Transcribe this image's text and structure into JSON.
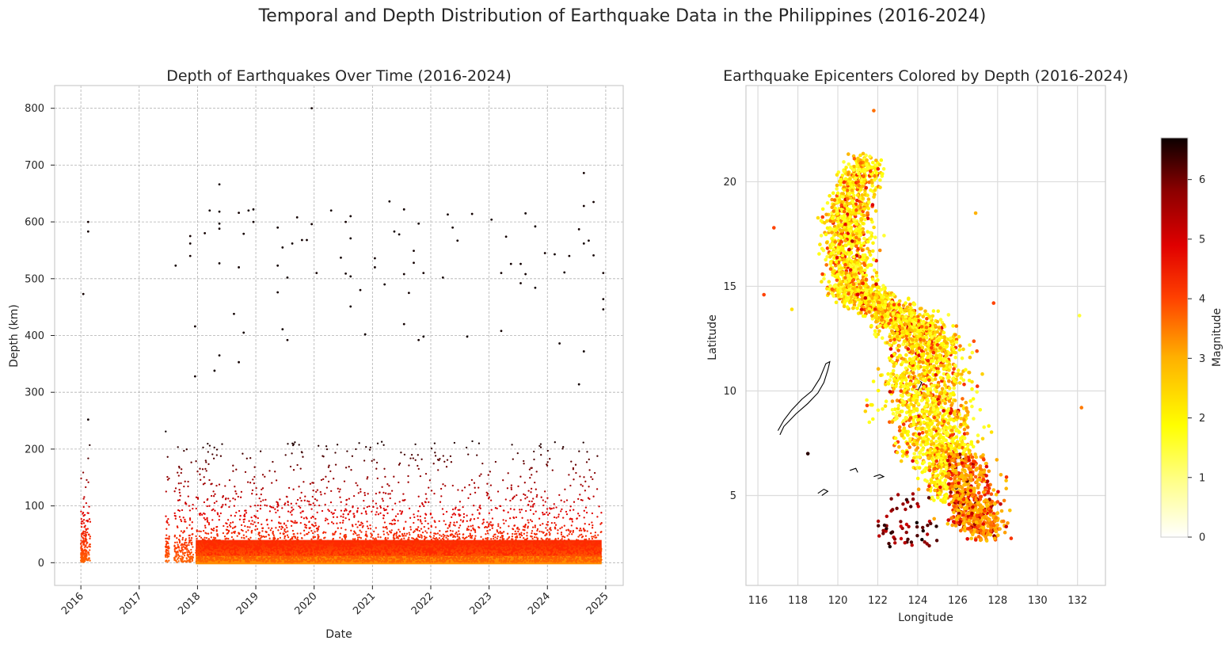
{
  "figure": {
    "suptitle": "Temporal and Depth Distribution of Earthquake Data in the Philippines (2016-2024)"
  },
  "chart_data": [
    {
      "type": "scatter",
      "title": "Depth of Earthquakes Over Time (2016-2024)",
      "xlabel": "Date",
      "ylabel": "Depth (km)",
      "x_range_years": [
        2015.55,
        2025.3
      ],
      "ylim": [
        -40,
        840
      ],
      "x_ticks": [
        "2016",
        "2017",
        "2018",
        "2019",
        "2020",
        "2021",
        "2022",
        "2023",
        "2024",
        "2025"
      ],
      "y_ticks": [
        0,
        100,
        200,
        300,
        400,
        500,
        600,
        700,
        800
      ],
      "grid": "dashed",
      "colormap": "hot_r by depth",
      "density_note": "dense band 0-200 km continuous from 2017.9 to 2024.9; short bursts early 2016 and mid/late 2017",
      "outliers": [
        {
          "x": "2016-02",
          "y": 600
        },
        {
          "x": "2016-02",
          "y": 583
        },
        {
          "x": "2016-01",
          "y": 473
        },
        {
          "x": "2016-02",
          "y": 252
        },
        {
          "x": "2017-08",
          "y": 523
        },
        {
          "x": "2017-11",
          "y": 575
        },
        {
          "x": "2017-11",
          "y": 562
        },
        {
          "x": "2017-11",
          "y": 540
        },
        {
          "x": "2017-12",
          "y": 416
        },
        {
          "x": "2017-12",
          "y": 328
        },
        {
          "x": "2018-02",
          "y": 580
        },
        {
          "x": "2018-03",
          "y": 620
        },
        {
          "x": "2018-05",
          "y": 618
        },
        {
          "x": "2018-05",
          "y": 666
        },
        {
          "x": "2018-05",
          "y": 597
        },
        {
          "x": "2018-05",
          "y": 588
        },
        {
          "x": "2018-05",
          "y": 527
        },
        {
          "x": "2018-09",
          "y": 616
        },
        {
          "x": "2018-11",
          "y": 620
        },
        {
          "x": "2018-12",
          "y": 622
        },
        {
          "x": "2018-12",
          "y": 600
        },
        {
          "x": "2018-09",
          "y": 520
        },
        {
          "x": "2018-10",
          "y": 405
        },
        {
          "x": "2018-08",
          "y": 438
        },
        {
          "x": "2018-10",
          "y": 579
        },
        {
          "x": "2018-05",
          "y": 365
        },
        {
          "x": "2018-09",
          "y": 353
        },
        {
          "x": "2018-04",
          "y": 338
        },
        {
          "x": "2019-05",
          "y": 590
        },
        {
          "x": "2019-09",
          "y": 608
        },
        {
          "x": "2019-06",
          "y": 555
        },
        {
          "x": "2019-08",
          "y": 562
        },
        {
          "x": "2019-10",
          "y": 568
        },
        {
          "x": "2019-11",
          "y": 568
        },
        {
          "x": "2019-07",
          "y": 502
        },
        {
          "x": "2019-05",
          "y": 523
        },
        {
          "x": "2019-05",
          "y": 476
        },
        {
          "x": "2019-06",
          "y": 411
        },
        {
          "x": "2019-07",
          "y": 392
        },
        {
          "x": "2019-12",
          "y": 596
        },
        {
          "x": "2019-12",
          "y": 800
        },
        {
          "x": "2020-01",
          "y": 510
        },
        {
          "x": "2020-04",
          "y": 620
        },
        {
          "x": "2020-08",
          "y": 610
        },
        {
          "x": "2020-07",
          "y": 600
        },
        {
          "x": "2020-08",
          "y": 571
        },
        {
          "x": "2020-06",
          "y": 537
        },
        {
          "x": "2020-07",
          "y": 509
        },
        {
          "x": "2020-08",
          "y": 504
        },
        {
          "x": "2020-11",
          "y": 402
        },
        {
          "x": "2020-10",
          "y": 480
        },
        {
          "x": "2020-08",
          "y": 451
        },
        {
          "x": "2021-01",
          "y": 536
        },
        {
          "x": "2021-01",
          "y": 520
        },
        {
          "x": "2021-03",
          "y": 490
        },
        {
          "x": "2021-04",
          "y": 636
        },
        {
          "x": "2021-07",
          "y": 622
        },
        {
          "x": "2021-05",
          "y": 583
        },
        {
          "x": "2021-06",
          "y": 578
        },
        {
          "x": "2021-07",
          "y": 508
        },
        {
          "x": "2021-09",
          "y": 549
        },
        {
          "x": "2021-09",
          "y": 528
        },
        {
          "x": "2021-08",
          "y": 475
        },
        {
          "x": "2021-07",
          "y": 420
        },
        {
          "x": "2021-10",
          "y": 392
        },
        {
          "x": "2021-11",
          "y": 398
        },
        {
          "x": "2021-11",
          "y": 510
        },
        {
          "x": "2021-10",
          "y": 597
        },
        {
          "x": "2022-04",
          "y": 613
        },
        {
          "x": "2022-05",
          "y": 590
        },
        {
          "x": "2022-06",
          "y": 567
        },
        {
          "x": "2022-03",
          "y": 502
        },
        {
          "x": "2022-09",
          "y": 614
        },
        {
          "x": "2022-08",
          "y": 398
        },
        {
          "x": "2023-01",
          "y": 604
        },
        {
          "x": "2023-04",
          "y": 574
        },
        {
          "x": "2023-05",
          "y": 526
        },
        {
          "x": "2023-07",
          "y": 526
        },
        {
          "x": "2023-08",
          "y": 615
        },
        {
          "x": "2023-10",
          "y": 592
        },
        {
          "x": "2023-08",
          "y": 508
        },
        {
          "x": "2023-07",
          "y": 492
        },
        {
          "x": "2023-10",
          "y": 484
        },
        {
          "x": "2023-03",
          "y": 510
        },
        {
          "x": "2023-03",
          "y": 408
        },
        {
          "x": "2023-12",
          "y": 545
        },
        {
          "x": "2024-02",
          "y": 543
        },
        {
          "x": "2024-04",
          "y": 511
        },
        {
          "x": "2024-05",
          "y": 540
        },
        {
          "x": "2024-08",
          "y": 686
        },
        {
          "x": "2024-08",
          "y": 628
        },
        {
          "x": "2024-07",
          "y": 587
        },
        {
          "x": "2024-08",
          "y": 562
        },
        {
          "x": "2024-09",
          "y": 567
        },
        {
          "x": "2024-10",
          "y": 635
        },
        {
          "x": "2024-10",
          "y": 541
        },
        {
          "x": "2024-12",
          "y": 510
        },
        {
          "x": "2024-12",
          "y": 464
        },
        {
          "x": "2024-12",
          "y": 446
        },
        {
          "x": "2024-08",
          "y": 372
        },
        {
          "x": "2024-03",
          "y": 386
        },
        {
          "x": "2024-07",
          "y": 314
        }
      ]
    },
    {
      "type": "scatter",
      "title": "Earthquake Epicenters Colored by Depth (2016-2024)",
      "xlabel": "Longitude",
      "ylabel": "Latitude",
      "xlim": [
        115.4,
        133.4
      ],
      "ylim": [
        0.7,
        24.6
      ],
      "x_ticks": [
        116,
        118,
        120,
        122,
        124,
        126,
        128,
        130,
        132
      ],
      "y_ticks": [
        5,
        10,
        15,
        20
      ],
      "grid": true,
      "colorbar": {
        "label": "Magnitude",
        "ticks": [
          0,
          1,
          2,
          3,
          4,
          5,
          6
        ],
        "range": [
          0,
          6.7
        ],
        "colormap": "hot_r"
      },
      "outliers": [
        {
          "lon": 121.8,
          "lat": 23.4,
          "mag": 3.6
        },
        {
          "lon": 116.3,
          "lat": 14.6,
          "mag": 4.0
        },
        {
          "lon": 116.8,
          "lat": 17.8,
          "mag": 4.0
        },
        {
          "lon": 117.7,
          "lat": 13.9,
          "mag": 2.3
        },
        {
          "lon": 118.5,
          "lat": 7.0,
          "mag": 6.5
        },
        {
          "lon": 127.8,
          "lat": 14.2,
          "mag": 4.0
        },
        {
          "lon": 126.9,
          "lat": 18.5,
          "mag": 3.0
        },
        {
          "lon": 132.1,
          "lat": 13.6,
          "mag": 1.5
        },
        {
          "lon": 132.2,
          "lat": 9.2,
          "mag": 3.5
        }
      ]
    }
  ]
}
